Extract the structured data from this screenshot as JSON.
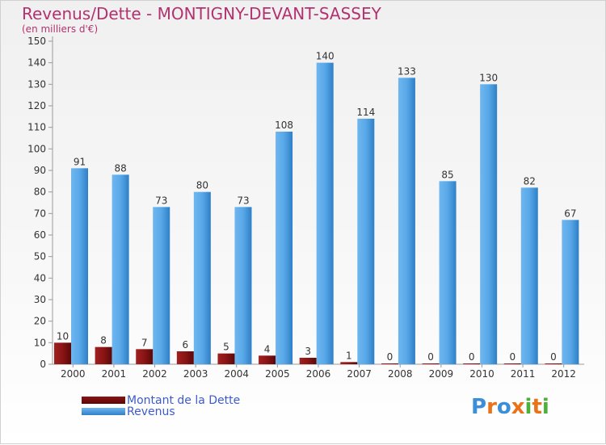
{
  "chart_data": {
    "type": "bar",
    "title": "Revenus/Dette - MONTIGNY-DEVANT-SASSEY",
    "subtitle": "(en milliers d'€)",
    "categories": [
      "2000",
      "2001",
      "2002",
      "2003",
      "2004",
      "2005",
      "2006",
      "2007",
      "2008",
      "2009",
      "2010",
      "2011",
      "2012"
    ],
    "series": [
      {
        "name": "Montant de la Dette",
        "color": "#7a0f0f",
        "values": [
          10,
          8,
          7,
          6,
          5,
          4,
          3,
          1,
          0,
          0,
          0,
          0,
          0
        ]
      },
      {
        "name": "Revenus",
        "color": "#3f95dc",
        "values": [
          91,
          88,
          73,
          80,
          73,
          108,
          140,
          114,
          133,
          85,
          130,
          82,
          67
        ]
      }
    ],
    "ylim": [
      0,
      150
    ],
    "yticks": [
      0,
      10,
      20,
      30,
      40,
      50,
      60,
      70,
      80,
      90,
      100,
      110,
      120,
      130,
      140,
      150
    ],
    "grid": false,
    "legend_position": "bottom-left",
    "data_labels": true
  },
  "logo": {
    "letters": [
      "P",
      "r",
      "o",
      "x",
      "i",
      "t",
      "i"
    ],
    "colors": [
      "#3a8fd8",
      "#e8731a",
      "#3a8fd8",
      "#e8731a",
      "#4bb13a",
      "#e8731a",
      "#4bb13a"
    ]
  }
}
